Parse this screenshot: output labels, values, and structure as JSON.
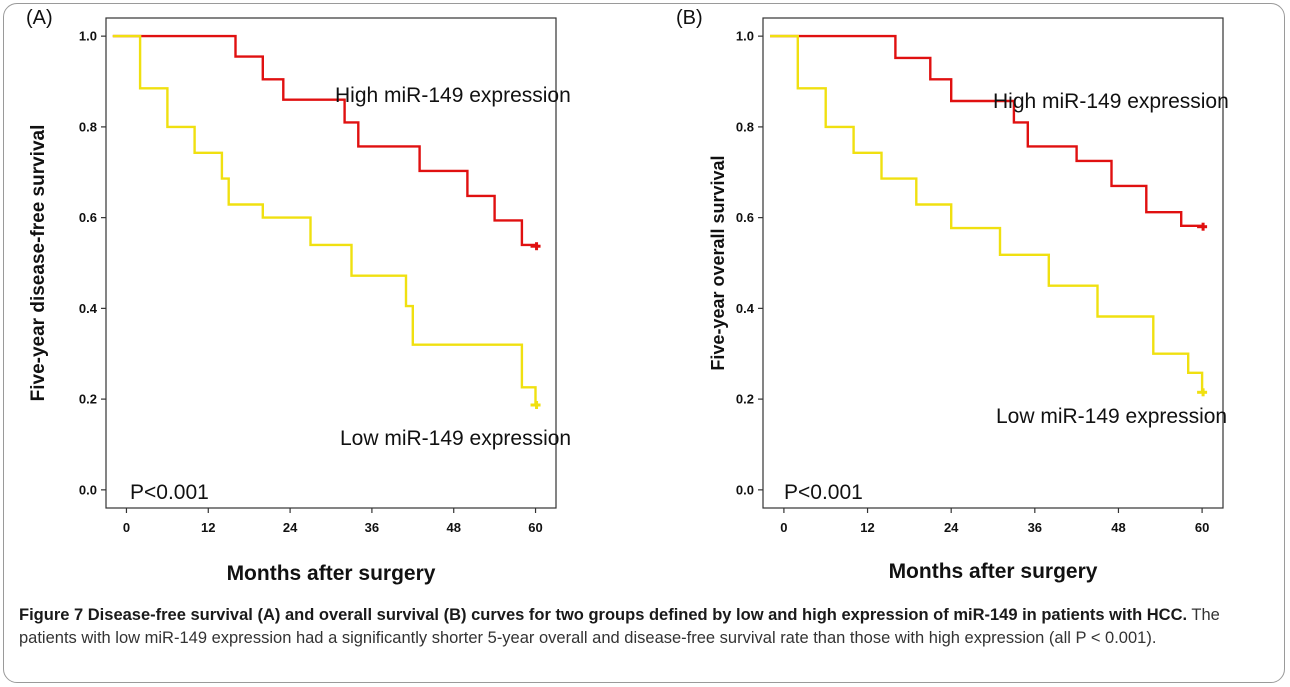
{
  "caption": {
    "title": "Figure 7 Disease-free survival (A) and overall survival (B) curves for two groups defined by low and high expression of miR-149 in patients with HCC.",
    "text": "The patients with low miR-149 expression had a significantly shorter 5-year overall and disease-free survival rate than those with high expression (all P < 0.001)."
  },
  "colors": {
    "high": "#e01010",
    "low": "#f0e010",
    "axis": "#333333"
  },
  "chart_data": [
    {
      "type": "line",
      "step": true,
      "panel_label": "(A)",
      "xlabel": "Months after surgery",
      "ylabel": "Five-year disease-free survival",
      "xlim": [
        -3,
        63
      ],
      "ylim": [
        -0.04,
        1.04
      ],
      "xticks": [
        "0",
        "12",
        "24",
        "36",
        "48",
        "60"
      ],
      "yticks": [
        "0.0",
        "0.2",
        "0.4",
        "0.6",
        "0.8",
        "1.0"
      ],
      "annotations": {
        "high": "High miR-149 expression",
        "low": "Low miR-149 expression",
        "p": "P<0.001"
      },
      "series": [
        {
          "key": "high",
          "x": [
            -2,
            16,
            20,
            23,
            32,
            34,
            43,
            50,
            54,
            58,
            60
          ],
          "y": [
            1.0,
            0.955,
            0.905,
            0.86,
            0.81,
            0.757,
            0.703,
            0.648,
            0.594,
            0.54,
            0.537
          ]
        },
        {
          "key": "low",
          "x": [
            -2,
            2,
            6,
            10,
            14,
            15,
            20,
            27,
            33,
            41,
            42,
            58,
            60
          ],
          "y": [
            1.0,
            0.885,
            0.8,
            0.743,
            0.686,
            0.629,
            0.6,
            0.54,
            0.472,
            0.405,
            0.32,
            0.226,
            0.187
          ]
        }
      ]
    },
    {
      "type": "line",
      "step": true,
      "panel_label": "(B)",
      "xlabel": "Months after surgery",
      "ylabel": "Five-year overall survival",
      "xlim": [
        -3,
        63
      ],
      "ylim": [
        -0.04,
        1.04
      ],
      "xticks": [
        "0",
        "12",
        "24",
        "36",
        "48",
        "60"
      ],
      "yticks": [
        "0.0",
        "0.2",
        "0.4",
        "0.6",
        "0.8",
        "1.0"
      ],
      "annotations": {
        "high": "High miR-149 expression",
        "low": "Low miR-149 expression",
        "p": "P<0.001"
      },
      "series": [
        {
          "key": "high",
          "x": [
            -2,
            16,
            21,
            24,
            33,
            35,
            42,
            47,
            52,
            57,
            60
          ],
          "y": [
            1.0,
            0.952,
            0.905,
            0.857,
            0.81,
            0.757,
            0.725,
            0.67,
            0.612,
            0.582,
            0.58
          ]
        },
        {
          "key": "low",
          "x": [
            -2,
            2,
            6,
            10,
            14,
            19,
            24,
            31,
            38,
            45,
            53,
            58,
            60
          ],
          "y": [
            1.0,
            0.885,
            0.8,
            0.743,
            0.686,
            0.629,
            0.577,
            0.518,
            0.45,
            0.382,
            0.3,
            0.258,
            0.215
          ]
        }
      ]
    }
  ]
}
